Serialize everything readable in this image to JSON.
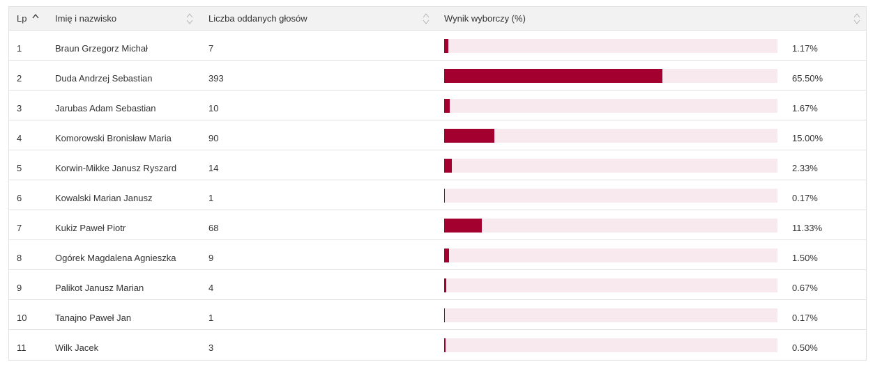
{
  "table": {
    "headers": {
      "lp": "Lp",
      "name": "Imię i nazwisko",
      "votes": "Liczba oddanych głosów",
      "result": "Wynik wyborczy (%)"
    },
    "rows": [
      {
        "lp": "1",
        "name": "Braun Grzegorz Michał",
        "votes": "7",
        "pct": "1.17%",
        "fraction": 0.0117
      },
      {
        "lp": "2",
        "name": "Duda Andrzej Sebastian",
        "votes": "393",
        "pct": "65.50%",
        "fraction": 0.655
      },
      {
        "lp": "3",
        "name": "Jarubas Adam Sebastian",
        "votes": "10",
        "pct": "1.67%",
        "fraction": 0.0167
      },
      {
        "lp": "4",
        "name": "Komorowski Bronisław Maria",
        "votes": "90",
        "pct": "15.00%",
        "fraction": 0.15
      },
      {
        "lp": "5",
        "name": "Korwin-Mikke Janusz Ryszard",
        "votes": "14",
        "pct": "2.33%",
        "fraction": 0.0233
      },
      {
        "lp": "6",
        "name": "Kowalski Marian Janusz",
        "votes": "1",
        "pct": "0.17%",
        "fraction": 0.0017
      },
      {
        "lp": "7",
        "name": "Kukiz Paweł Piotr",
        "votes": "68",
        "pct": "11.33%",
        "fraction": 0.1133
      },
      {
        "lp": "8",
        "name": "Ogórek Magdalena Agnieszka",
        "votes": "9",
        "pct": "1.50%",
        "fraction": 0.015
      },
      {
        "lp": "9",
        "name": "Palikot Janusz Marian",
        "votes": "4",
        "pct": "0.67%",
        "fraction": 0.0067
      },
      {
        "lp": "10",
        "name": "Tanajno Paweł Jan",
        "votes": "1",
        "pct": "0.17%",
        "fraction": 0.0017
      },
      {
        "lp": "11",
        "name": "Wilk Jacek",
        "votes": "3",
        "pct": "0.50%",
        "fraction": 0.005
      }
    ]
  },
  "colors": {
    "bar_fill": "#a3002f",
    "bar_track": "#f7e9ee",
    "header_bg": "#f2f2f2",
    "border": "#e1e1e1"
  },
  "icons": {
    "sorted_column": "chevron-up-icon",
    "sortable_columns": "sort-icon"
  }
}
